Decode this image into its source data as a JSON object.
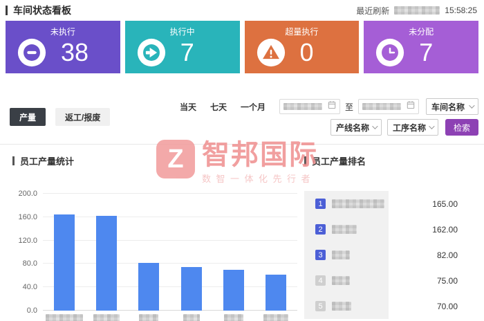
{
  "header": {
    "title": "车间状态看板",
    "refresh_label": "最近刷新",
    "refresh_date_redacted": true,
    "refresh_time": "15:58:25"
  },
  "cards": [
    {
      "label": "未执行",
      "value": "38",
      "color": "#6a4fc9",
      "icon": "minus-circle-icon"
    },
    {
      "label": "执行中",
      "value": "7",
      "color": "#29b4ba",
      "icon": "arrow-right-circle-icon"
    },
    {
      "label": "超量执行",
      "value": "0",
      "color": "#dd7140",
      "icon": "warning-triangle-icon"
    },
    {
      "label": "未分配",
      "value": "7",
      "color": "#a55ed6",
      "icon": "clock-icon"
    }
  ],
  "filters": {
    "tabs": [
      {
        "label": "产量",
        "active": true
      },
      {
        "label": "返工/报废",
        "active": false
      }
    ],
    "quick_ranges": [
      "当天",
      "七天",
      "一个月"
    ],
    "date_from_redacted": true,
    "date_separator": "至",
    "date_to_redacted": true,
    "selects": [
      "车间名称",
      "产线名称",
      "工序名称"
    ],
    "search_label": "检索"
  },
  "sections": {
    "left_title": "员工产量统计",
    "right_title": "员工产量排名"
  },
  "chart_data": {
    "type": "bar",
    "title": "员工产量统计",
    "categories_redacted": true,
    "values": [
      165,
      162,
      82,
      75,
      70,
      62
    ],
    "ylim": [
      0,
      200
    ],
    "yticks": [
      0,
      40,
      80,
      120,
      160,
      200
    ],
    "ytick_labels": [
      "0.0",
      "40.0",
      "80.0",
      "120.0",
      "160.0",
      "200.0"
    ],
    "bar_color": "#4e88ef",
    "grid": true,
    "legend": "none"
  },
  "ranking": {
    "top_badge_color": "#4c5fd6",
    "other_badge_color": "#cfcfcf",
    "rows": [
      {
        "rank": "1",
        "name_redacted": true,
        "value": "165.00"
      },
      {
        "rank": "2",
        "name_redacted": true,
        "value": "162.00"
      },
      {
        "rank": "3",
        "name_redacted": true,
        "value": "82.00"
      },
      {
        "rank": "4",
        "name_redacted": true,
        "value": "75.00"
      },
      {
        "rank": "5",
        "name_redacted": true,
        "value": "70.00"
      }
    ]
  },
  "watermark": {
    "logo_letter": "Z",
    "brand": "智邦国际",
    "slogan": "数智一体化先行者"
  }
}
